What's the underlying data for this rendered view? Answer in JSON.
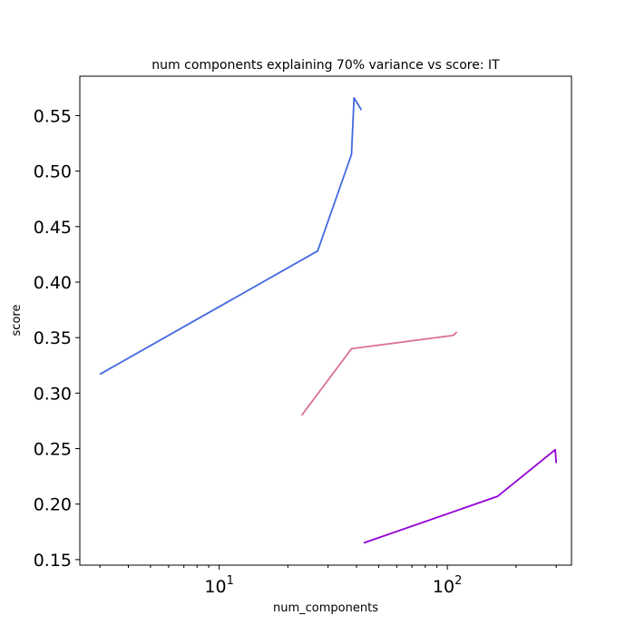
{
  "chart_data": {
    "type": "line",
    "title": "num components explaining 70% variance vs score: IT",
    "xlabel": "num_components",
    "ylabel": "score",
    "xscale": "log",
    "xlim": [
      2.45,
      350
    ],
    "ylim": [
      0.145,
      0.5855
    ],
    "x_ticks": [
      {
        "value": 10,
        "base": "10",
        "exp": "1"
      },
      {
        "value": 100,
        "base": "10",
        "exp": "2"
      }
    ],
    "y_ticks": [
      {
        "value": 0.15,
        "label": "0.15"
      },
      {
        "value": 0.2,
        "label": "0.20"
      },
      {
        "value": 0.25,
        "label": "0.25"
      },
      {
        "value": 0.3,
        "label": "0.30"
      },
      {
        "value": 0.35,
        "label": "0.35"
      },
      {
        "value": 0.4,
        "label": "0.40"
      },
      {
        "value": 0.45,
        "label": "0.45"
      },
      {
        "value": 0.5,
        "label": "0.50"
      },
      {
        "value": 0.55,
        "label": "0.55"
      }
    ],
    "grid": false,
    "legend": "none",
    "series": [
      {
        "color": "#4169e1",
        "x": [
          3,
          27,
          38,
          39,
          42
        ],
        "y": [
          0.317,
          0.428,
          0.515,
          0.566,
          0.555
        ]
      },
      {
        "color": "#db7093",
        "x": [
          23,
          38,
          106,
          110
        ],
        "y": [
          0.28,
          0.34,
          0.352,
          0.355
        ]
      },
      {
        "color": "#9400d3",
        "x": [
          43,
          166,
          297,
          300
        ],
        "y": [
          0.165,
          0.207,
          0.249,
          0.237
        ]
      }
    ]
  }
}
